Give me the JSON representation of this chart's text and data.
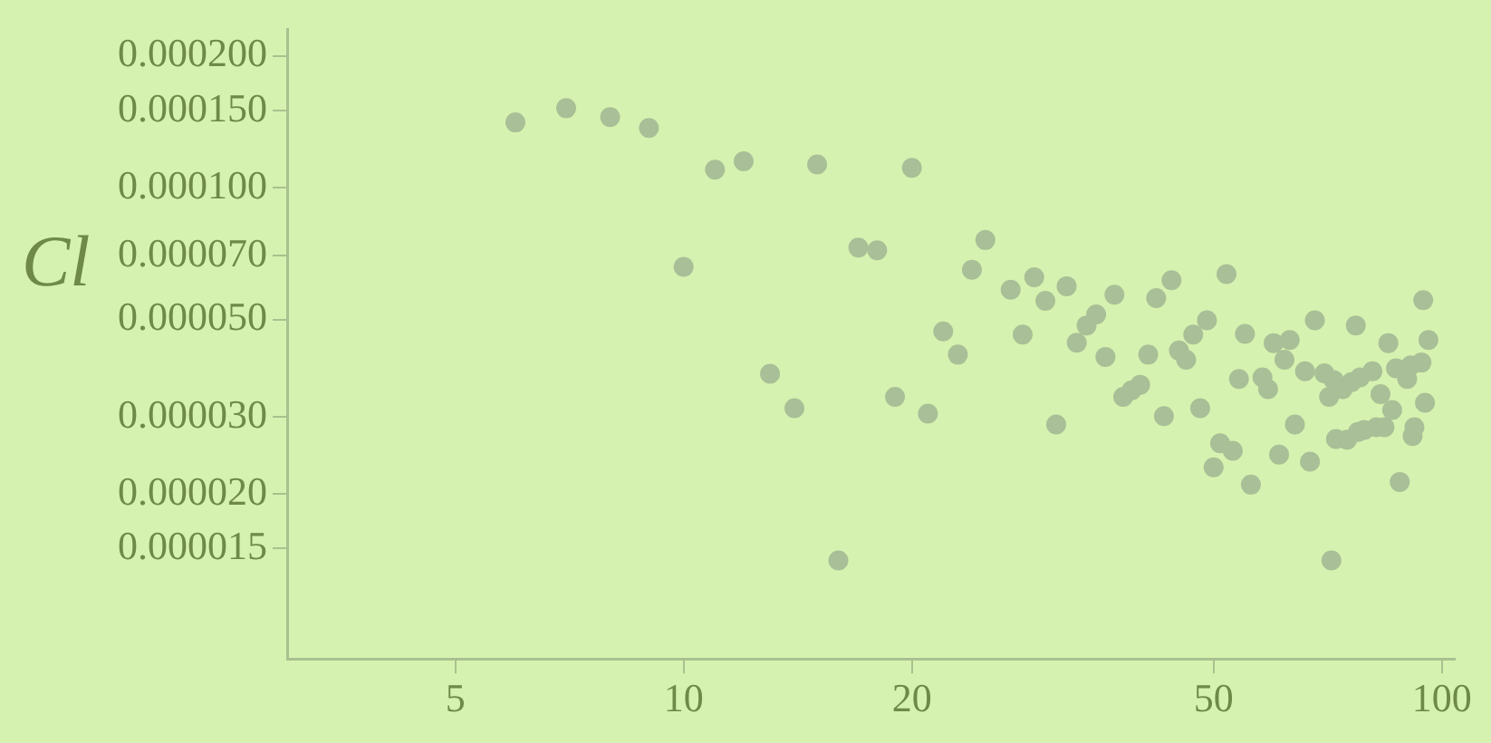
{
  "chart_data": {
    "type": "scatter",
    "ylabel": "Cl",
    "log": "xy",
    "grid": false,
    "legend": false,
    "marker": "circle",
    "xlim": [
      3,
      104
    ],
    "ylim": [
      8.4e-06,
      0.00023
    ],
    "xticks": [
      5,
      10,
      20,
      50,
      100
    ],
    "yticks": [
      {
        "value": 0.0002,
        "label": "0.000200"
      },
      {
        "value": 0.00015,
        "label": "0.000150"
      },
      {
        "value": 0.0001,
        "label": "0.000100"
      },
      {
        "value": 7e-05,
        "label": "0.000070"
      },
      {
        "value": 5e-05,
        "label": "0.000050"
      },
      {
        "value": 3e-05,
        "label": "0.000030"
      },
      {
        "value": 2e-05,
        "label": "0.000020"
      },
      {
        "value": 1.5e-05,
        "label": "0.000015"
      }
    ],
    "series": [
      {
        "color": "#a9bf97",
        "x": [
          6,
          7,
          8,
          9,
          10,
          11,
          12,
          13,
          14,
          15,
          16,
          17,
          18,
          19,
          20,
          21,
          22,
          23,
          24,
          25,
          27,
          28,
          29,
          30,
          31,
          32,
          33,
          34,
          35,
          36,
          37,
          38,
          39,
          40,
          41,
          42,
          43,
          44,
          45,
          46,
          47,
          48,
          49,
          50,
          51,
          52,
          53,
          54,
          55,
          56,
          58,
          59,
          60,
          61,
          62,
          63,
          64,
          66,
          67,
          68,
          70,
          71,
          71.5,
          72,
          72.5,
          74,
          75,
          76,
          77,
          77.5,
          78,
          79,
          81,
          82,
          83,
          84,
          85,
          86,
          87,
          88,
          90,
          91,
          91.5,
          92,
          94,
          94.5,
          95,
          96
        ],
        "values": [
          0.000141,
          0.000152,
          0.000145,
          0.000137,
          6.6e-05,
          0.00011,
          0.000115,
          3.76e-05,
          3.14e-05,
          0.000113,
          1.41e-05,
          7.3e-05,
          7.2e-05,
          3.33e-05,
          0.000111,
          3.05e-05,
          4.7e-05,
          4.16e-05,
          6.5e-05,
          7.6e-05,
          5.85e-05,
          4.62e-05,
          6.25e-05,
          5.52e-05,
          2.88e-05,
          5.96e-05,
          4.43e-05,
          4.85e-05,
          5.14e-05,
          4.11e-05,
          5.7e-05,
          3.33e-05,
          3.45e-05,
          3.55e-05,
          4.16e-05,
          5.6e-05,
          3.01e-05,
          6.15e-05,
          4.25e-05,
          4.05e-05,
          4.62e-05,
          3.14e-05,
          4.98e-05,
          2.3e-05,
          2.61e-05,
          6.35e-05,
          2.51e-05,
          3.66e-05,
          4.64e-05,
          2.1e-05,
          3.69e-05,
          3.47e-05,
          4.42e-05,
          2.46e-05,
          4.05e-05,
          4.49e-05,
          2.88e-05,
          3.81e-05,
          2.37e-05,
          4.98e-05,
          3.77e-05,
          3.33e-05,
          1.41e-05,
          3.64e-05,
          2.67e-05,
          3.47e-05,
          2.66e-05,
          3.6e-05,
          4.85e-05,
          2.77e-05,
          3.69e-05,
          2.8e-05,
          3.81e-05,
          2.84e-05,
          3.38e-05,
          2.84e-05,
          4.42e-05,
          3.11e-05,
          3.87e-05,
          2.13e-05,
          3.66e-05,
          3.93e-05,
          2.71e-05,
          2.84e-05,
          3.99e-05,
          5.54e-05,
          3.23e-05,
          4.49e-05
        ]
      }
    ]
  }
}
